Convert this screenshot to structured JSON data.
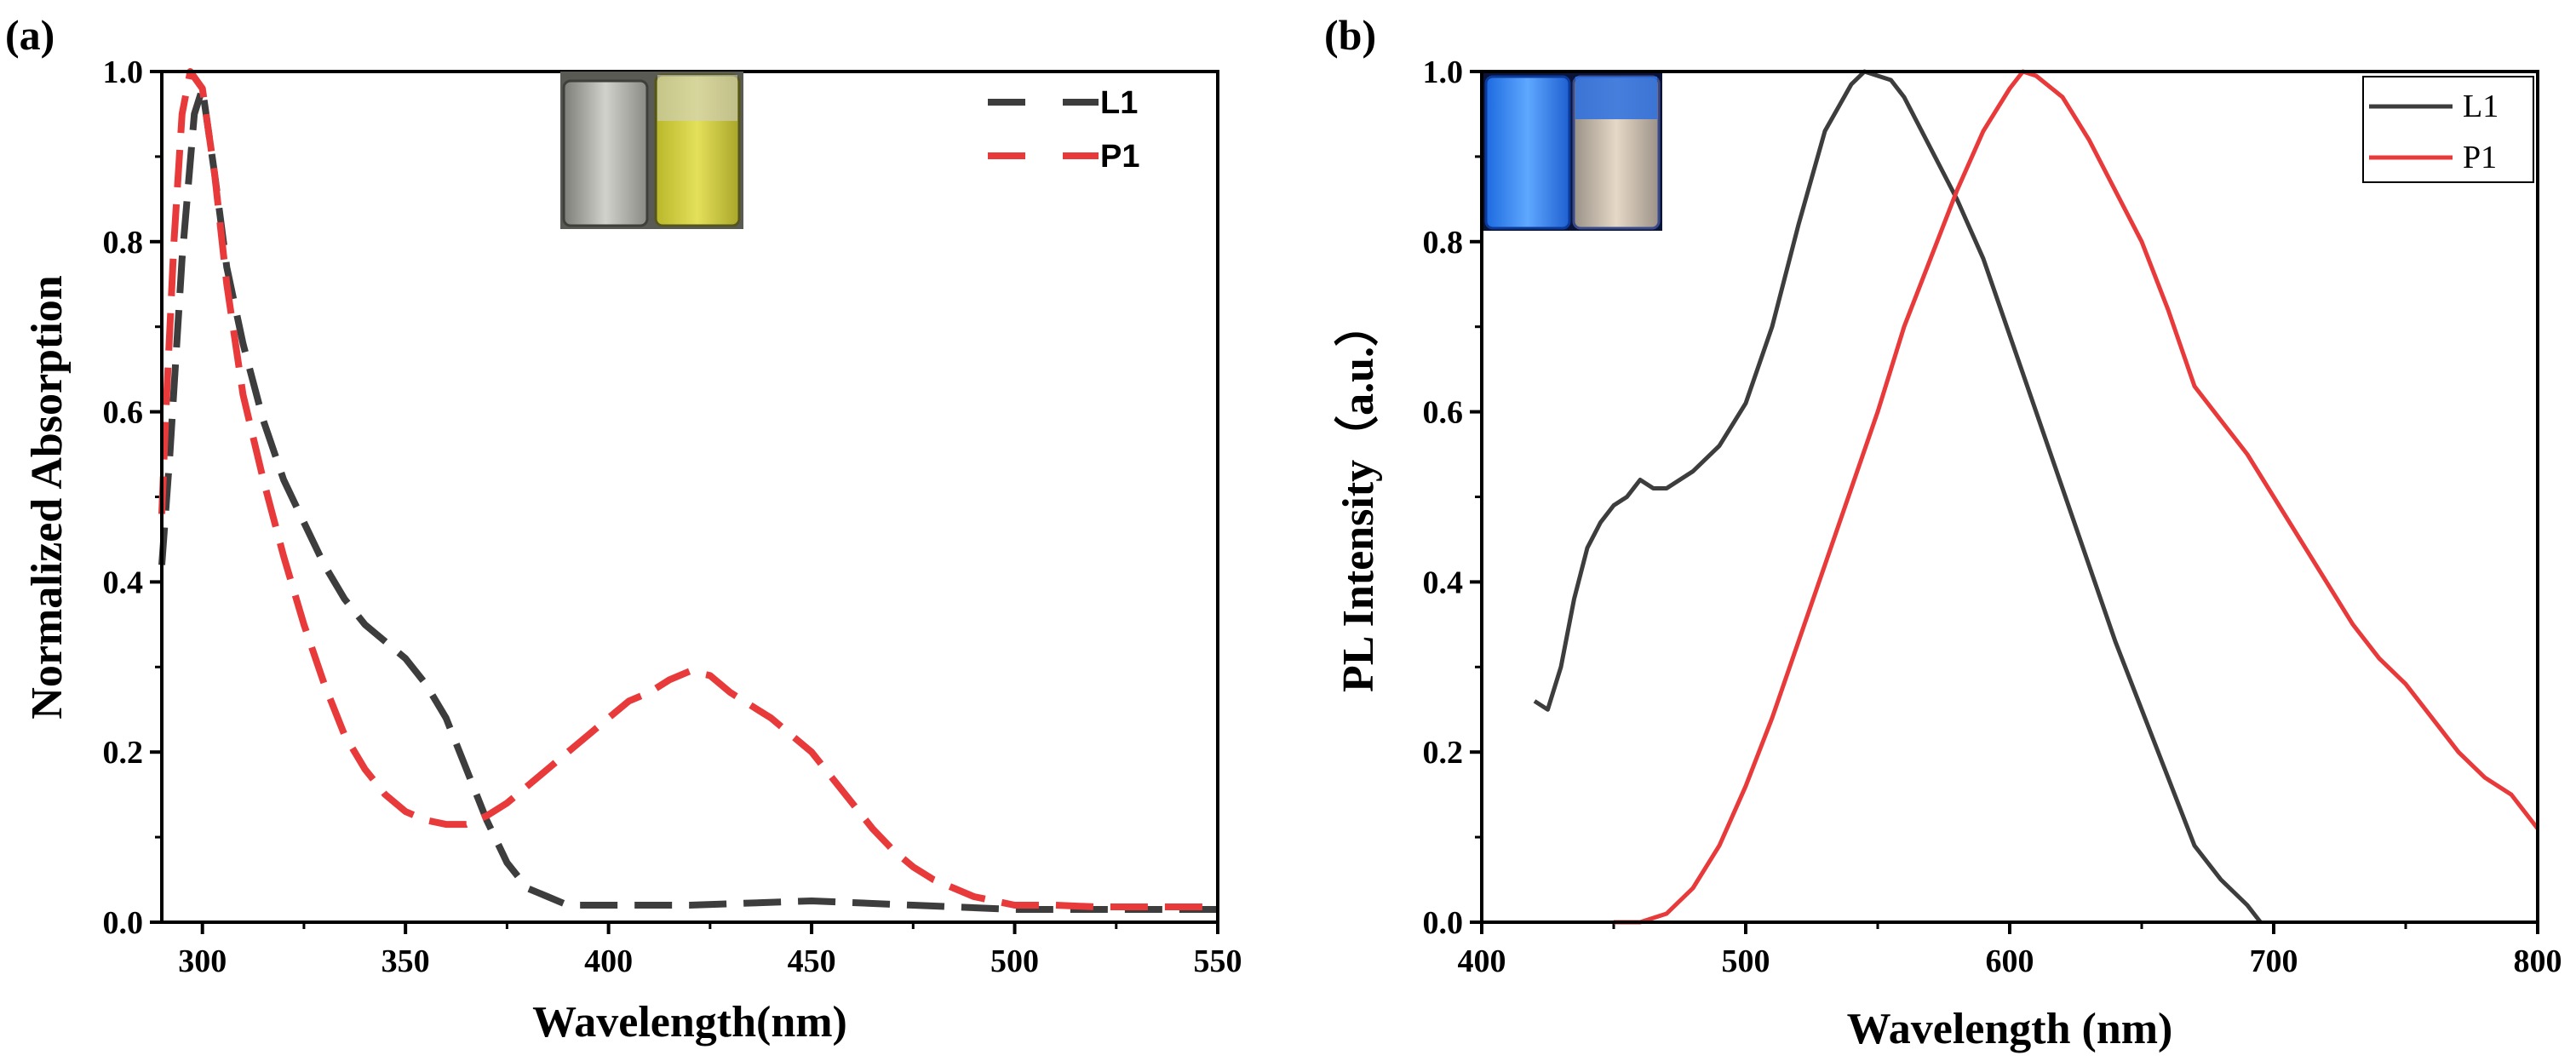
{
  "chart_data": [
    {
      "panel_label": "(a)",
      "type": "line",
      "xlabel": "Wavelength(nm)",
      "ylabel": "Normalized Absorption",
      "xlim": [
        290,
        550
      ],
      "ylim": [
        0,
        1.0
      ],
      "xticks": [
        300,
        350,
        400,
        450,
        500,
        550
      ],
      "yticks": [
        0.0,
        0.2,
        0.4,
        0.6,
        0.8,
        1.0
      ],
      "legend_position": "top-right",
      "inset": "photo-of-two-vials-daylight",
      "series": [
        {
          "name": "L1",
          "color": "#3d3d3d",
          "style": "dashed",
          "x": [
            290,
            292,
            295,
            298,
            300,
            303,
            306,
            310,
            315,
            320,
            325,
            330,
            335,
            340,
            345,
            350,
            355,
            360,
            365,
            370,
            375,
            380,
            385,
            390,
            400,
            420,
            450,
            475,
            500,
            525,
            550
          ],
          "y": [
            0.42,
            0.55,
            0.78,
            0.95,
            0.98,
            0.88,
            0.77,
            0.68,
            0.59,
            0.52,
            0.47,
            0.42,
            0.38,
            0.35,
            0.33,
            0.31,
            0.28,
            0.24,
            0.18,
            0.12,
            0.07,
            0.04,
            0.03,
            0.02,
            0.02,
            0.02,
            0.025,
            0.02,
            0.015,
            0.015,
            0.015
          ]
        },
        {
          "name": "P1",
          "color": "#e83a3a",
          "style": "dashed",
          "x": [
            290,
            291,
            293,
            295,
            297,
            300,
            303,
            306,
            310,
            315,
            320,
            325,
            330,
            335,
            340,
            345,
            350,
            355,
            360,
            365,
            370,
            375,
            380,
            385,
            390,
            395,
            400,
            405,
            410,
            415,
            420,
            425,
            430,
            435,
            440,
            445,
            450,
            455,
            460,
            465,
            470,
            475,
            480,
            485,
            490,
            495,
            500,
            510,
            520,
            530,
            540,
            550
          ],
          "y": [
            0.48,
            0.6,
            0.8,
            0.95,
            1.0,
            0.98,
            0.88,
            0.75,
            0.62,
            0.52,
            0.43,
            0.35,
            0.28,
            0.22,
            0.18,
            0.15,
            0.13,
            0.12,
            0.115,
            0.115,
            0.125,
            0.14,
            0.16,
            0.18,
            0.2,
            0.22,
            0.24,
            0.26,
            0.27,
            0.285,
            0.295,
            0.29,
            0.27,
            0.255,
            0.24,
            0.22,
            0.2,
            0.17,
            0.14,
            0.11,
            0.085,
            0.065,
            0.05,
            0.04,
            0.03,
            0.025,
            0.02,
            0.02,
            0.018,
            0.018,
            0.018,
            0.018
          ]
        }
      ]
    },
    {
      "panel_label": "(b)",
      "type": "line",
      "xlabel": "Wavelength (nm)",
      "ylabel": "PL Intensity（a.u.）",
      "xlim": [
        400,
        800
      ],
      "ylim": [
        0,
        1.0
      ],
      "xticks": [
        400,
        500,
        600,
        700,
        800
      ],
      "yticks": [
        0.0,
        0.2,
        0.4,
        0.6,
        0.8,
        1.0
      ],
      "legend_position": "top-right",
      "inset": "photo-of-two-vials-under-uv",
      "series": [
        {
          "name": "L1",
          "color": "#3d3d3d",
          "style": "solid",
          "x": [
            420,
            425,
            430,
            435,
            440,
            445,
            450,
            455,
            460,
            465,
            470,
            480,
            490,
            500,
            510,
            520,
            530,
            540,
            545,
            550,
            555,
            560,
            570,
            580,
            590,
            600,
            610,
            620,
            630,
            640,
            650,
            660,
            670,
            680,
            690,
            695
          ],
          "y": [
            0.26,
            0.25,
            0.3,
            0.38,
            0.44,
            0.47,
            0.49,
            0.5,
            0.52,
            0.51,
            0.51,
            0.53,
            0.56,
            0.61,
            0.7,
            0.82,
            0.93,
            0.985,
            1.0,
            0.995,
            0.99,
            0.97,
            0.91,
            0.85,
            0.78,
            0.69,
            0.6,
            0.51,
            0.42,
            0.33,
            0.25,
            0.17,
            0.09,
            0.05,
            0.02,
            0.0
          ]
        },
        {
          "name": "P1",
          "color": "#e83a3a",
          "style": "solid",
          "x": [
            450,
            460,
            470,
            480,
            490,
            500,
            510,
            520,
            530,
            540,
            550,
            560,
            570,
            580,
            590,
            600,
            605,
            610,
            620,
            630,
            640,
            650,
            660,
            670,
            680,
            690,
            700,
            710,
            720,
            730,
            740,
            750,
            760,
            770,
            780,
            790,
            800
          ],
          "y": [
            0.0,
            0.0,
            0.01,
            0.04,
            0.09,
            0.16,
            0.24,
            0.33,
            0.42,
            0.51,
            0.6,
            0.7,
            0.78,
            0.86,
            0.93,
            0.98,
            1.0,
            0.995,
            0.97,
            0.92,
            0.86,
            0.8,
            0.72,
            0.63,
            0.59,
            0.55,
            0.5,
            0.45,
            0.4,
            0.35,
            0.31,
            0.28,
            0.24,
            0.2,
            0.17,
            0.15,
            0.11
          ]
        }
      ]
    }
  ]
}
